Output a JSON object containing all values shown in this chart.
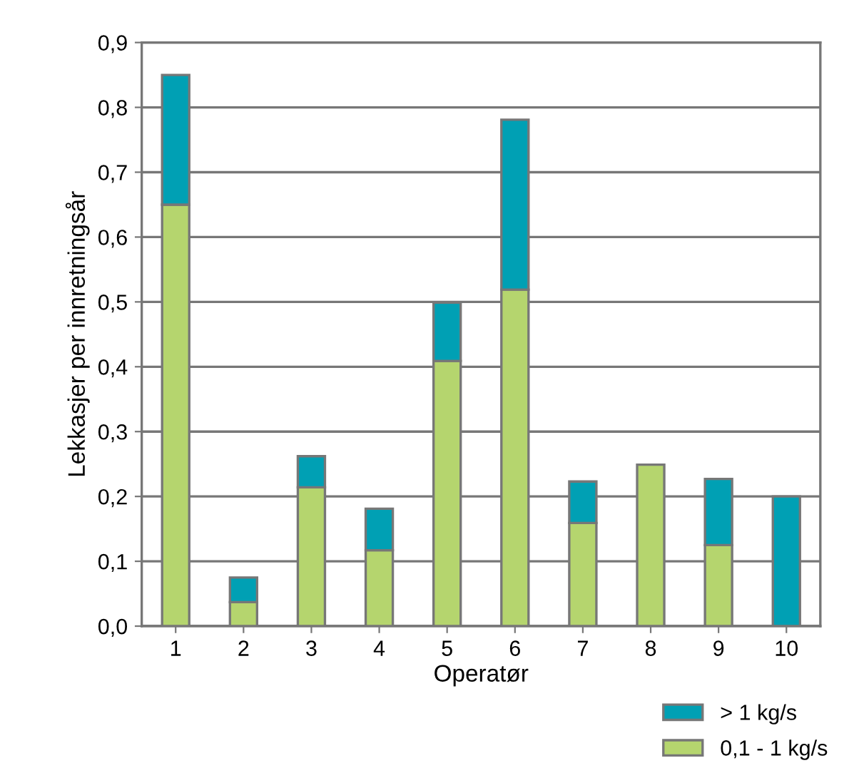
{
  "chart_data": {
    "type": "bar",
    "stacked": true,
    "xlabel": "Operatør",
    "ylabel": "Lekkasjer per innretningsår",
    "categories": [
      "1",
      "2",
      "3",
      "4",
      "5",
      "6",
      "7",
      "8",
      "9",
      "10"
    ],
    "series": [
      {
        "name": "0,1 - 1 kg/s",
        "color": "#b5d56e",
        "values": [
          0.65,
          0.037,
          0.214,
          0.117,
          0.409,
          0.519,
          0.159,
          0.249,
          0.125,
          null
        ]
      },
      {
        "name": "> 1 kg/s",
        "color": "#00a0b4",
        "values": [
          0.2,
          0.038,
          0.048,
          0.064,
          0.09,
          0.262,
          0.064,
          null,
          0.102,
          0.2
        ]
      }
    ],
    "ylim": [
      0,
      0.9
    ],
    "yticks": [
      {
        "value": 0,
        "label": "0,0"
      },
      {
        "value": 0.1,
        "label": "0,1"
      },
      {
        "value": 0.2,
        "label": "0,2"
      },
      {
        "value": 0.3,
        "label": "0,3"
      },
      {
        "value": 0.4,
        "label": "0,4"
      },
      {
        "value": 0.5,
        "label": "0,5"
      },
      {
        "value": 0.6,
        "label": "0,6"
      },
      {
        "value": 0.7,
        "label": "0,7"
      },
      {
        "value": 0.8,
        "label": "0,8"
      },
      {
        "value": 0.9,
        "label": "0,9"
      }
    ],
    "grid": "y",
    "legend": "bottom right"
  }
}
